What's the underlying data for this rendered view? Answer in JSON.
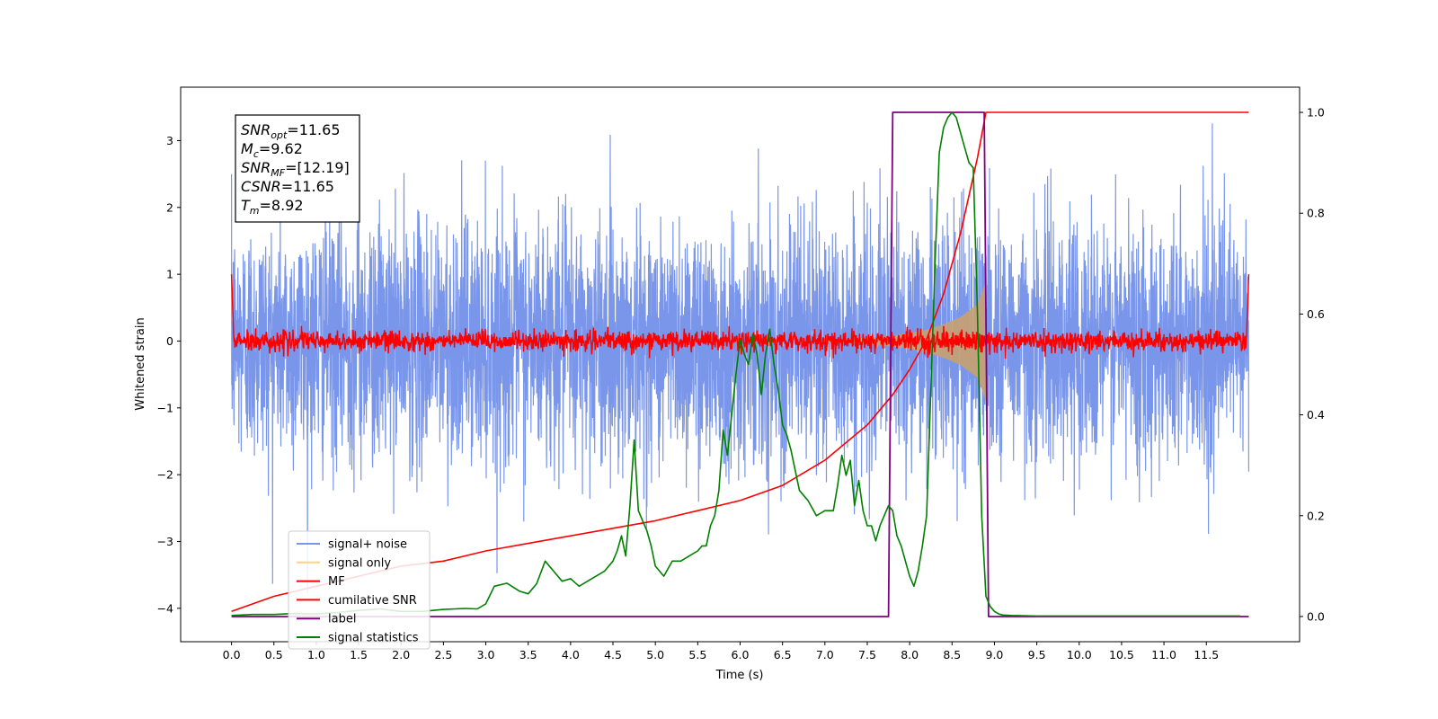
{
  "chart_data": {
    "type": "line",
    "xlabel": "Time (s)",
    "ylabel": "Whitened strain",
    "xlim": [
      -0.6,
      12.6
    ],
    "ylim_left": [
      -4.5,
      3.8
    ],
    "ylim_right": [
      -0.05,
      1.05
    ],
    "x_tick_values": [
      0.0,
      0.5,
      1.0,
      1.5,
      2.0,
      2.5,
      3.0,
      3.5,
      4.0,
      4.5,
      5.0,
      5.5,
      6.0,
      6.5,
      7.0,
      7.5,
      8.0,
      8.5,
      9.0,
      9.5,
      10.0,
      10.5,
      11.0,
      11.5
    ],
    "x_ticks": [
      "0.0",
      "0.5",
      "1.0",
      "1.5",
      "2.0",
      "2.5",
      "3.0",
      "3.5",
      "4.0",
      "4.5",
      "5.0",
      "5.5",
      "6.0",
      "6.5",
      "7.0",
      "7.5",
      "8.0",
      "8.5",
      "9.0",
      "9.5",
      "10.0",
      "10.5",
      "11.0",
      "11.5"
    ],
    "y_left_tick_values": [
      -4,
      -3,
      -2,
      -1,
      0,
      1,
      2,
      3
    ],
    "y_left_ticks": [
      "−4",
      "−3",
      "−2",
      "−1",
      "0",
      "1",
      "2",
      "3"
    ],
    "y_right_tick_values": [
      0.0,
      0.2,
      0.4,
      0.6,
      0.8,
      1.0
    ],
    "y_right_ticks": [
      "0.0",
      "0.2",
      "0.4",
      "0.6",
      "0.8",
      "1.0"
    ],
    "legend_position": "lower-left",
    "grid": false,
    "info_box": [
      {
        "sym": "SNR",
        "sub": "opt",
        "val": "=11.65"
      },
      {
        "sym": "M",
        "sub": "c",
        "val": "=9.62"
      },
      {
        "sym": "SNR",
        "sub": "MF",
        "val": "=[12.19]"
      },
      {
        "sym": "CSNR",
        "sub": "",
        "val": "=11.65"
      },
      {
        "sym": "T",
        "sub": "m",
        "val": "=8.92"
      }
    ],
    "series": [
      {
        "name": "signal+ noise",
        "color": "#4169E1",
        "opacity": 0.7,
        "axis": "left",
        "description": "Gaussian noise, amplitude roughly ±2.5 around 0, spanning 0–12 s"
      },
      {
        "name": "signal only",
        "color": "#FFD27F",
        "axis": "left",
        "envelope": {
          "t": [
            7.0,
            7.5,
            7.8,
            8.0,
            8.2,
            8.4,
            8.6,
            8.8,
            8.9
          ],
          "amp": [
            0.02,
            0.05,
            0.08,
            0.12,
            0.17,
            0.25,
            0.36,
            0.55,
            0.9
          ]
        }
      },
      {
        "name": "MF",
        "color": "#FF0000",
        "axis": "left",
        "description": "noise around 0 with amplitude ≈0.12, edges rising to about 1.0"
      },
      {
        "name": "cumilative SNR",
        "color": "#FF0000",
        "axis": "right",
        "x": [
          0.0,
          0.5,
          1.0,
          1.5,
          2.0,
          2.5,
          3.0,
          3.5,
          4.0,
          4.5,
          5.0,
          5.5,
          6.0,
          6.5,
          7.0,
          7.5,
          7.8,
          8.0,
          8.2,
          8.4,
          8.6,
          8.8,
          8.9,
          9.0,
          12.0
        ],
        "y": [
          0.01,
          0.04,
          0.06,
          0.08,
          0.1,
          0.11,
          0.13,
          0.145,
          0.16,
          0.175,
          0.19,
          0.21,
          0.23,
          0.26,
          0.31,
          0.38,
          0.44,
          0.49,
          0.55,
          0.64,
          0.76,
          0.91,
          1.0,
          1.0,
          1.0
        ]
      },
      {
        "name": "label",
        "color": "#800080",
        "axis": "right",
        "x": [
          0.0,
          7.75,
          7.8,
          8.88,
          8.93,
          12.0
        ],
        "y": [
          0.0,
          0.0,
          1.0,
          1.0,
          0.0,
          0.0
        ]
      },
      {
        "name": "signal statistics",
        "color": "#008000",
        "axis": "right",
        "x": [
          0.0,
          0.25,
          0.5,
          0.75,
          1.0,
          1.25,
          1.5,
          1.75,
          2.0,
          2.25,
          2.5,
          2.75,
          2.9,
          3.0,
          3.1,
          3.25,
          3.4,
          3.5,
          3.6,
          3.7,
          3.8,
          3.9,
          4.0,
          4.1,
          4.2,
          4.3,
          4.4,
          4.5,
          4.55,
          4.6,
          4.65,
          4.7,
          4.75,
          4.8,
          4.85,
          4.9,
          4.95,
          5.0,
          5.05,
          5.1,
          5.2,
          5.3,
          5.4,
          5.5,
          5.55,
          5.6,
          5.65,
          5.7,
          5.75,
          5.8,
          5.85,
          5.9,
          5.95,
          6.0,
          6.05,
          6.1,
          6.15,
          6.2,
          6.25,
          6.3,
          6.35,
          6.4,
          6.45,
          6.5,
          6.55,
          6.6,
          6.65,
          6.7,
          6.75,
          6.8,
          6.9,
          7.0,
          7.1,
          7.15,
          7.2,
          7.25,
          7.3,
          7.35,
          7.4,
          7.45,
          7.5,
          7.55,
          7.6,
          7.65,
          7.7,
          7.75,
          7.8,
          7.85,
          7.9,
          7.95,
          8.0,
          8.05,
          8.1,
          8.15,
          8.2,
          8.25,
          8.3,
          8.35,
          8.4,
          8.45,
          8.5,
          8.55,
          8.6,
          8.65,
          8.7,
          8.75,
          8.8,
          8.85,
          8.9,
          8.95,
          9.0,
          9.05,
          9.1,
          9.2,
          9.5,
          10.0,
          11.0,
          11.9
        ],
        "y": [
          0.002,
          0.004,
          0.004,
          0.006,
          0.005,
          0.008,
          0.012,
          0.015,
          0.01,
          0.01,
          0.014,
          0.016,
          0.015,
          0.025,
          0.06,
          0.066,
          0.05,
          0.045,
          0.065,
          0.11,
          0.09,
          0.07,
          0.075,
          0.06,
          0.07,
          0.08,
          0.09,
          0.11,
          0.13,
          0.16,
          0.12,
          0.22,
          0.35,
          0.21,
          0.19,
          0.17,
          0.14,
          0.1,
          0.09,
          0.08,
          0.11,
          0.11,
          0.12,
          0.13,
          0.14,
          0.14,
          0.18,
          0.2,
          0.25,
          0.37,
          0.32,
          0.4,
          0.48,
          0.55,
          0.52,
          0.5,
          0.56,
          0.52,
          0.44,
          0.52,
          0.57,
          0.5,
          0.45,
          0.38,
          0.36,
          0.33,
          0.29,
          0.25,
          0.24,
          0.23,
          0.2,
          0.21,
          0.21,
          0.26,
          0.32,
          0.28,
          0.31,
          0.22,
          0.27,
          0.21,
          0.18,
          0.18,
          0.15,
          0.18,
          0.2,
          0.22,
          0.21,
          0.16,
          0.14,
          0.11,
          0.08,
          0.06,
          0.09,
          0.14,
          0.2,
          0.45,
          0.7,
          0.92,
          0.97,
          0.99,
          1.0,
          0.99,
          0.96,
          0.93,
          0.9,
          0.89,
          0.6,
          0.2,
          0.04,
          0.02,
          0.01,
          0.005,
          0.003,
          0.002,
          0.001,
          0.001,
          0.001,
          0.001
        ]
      }
    ]
  }
}
